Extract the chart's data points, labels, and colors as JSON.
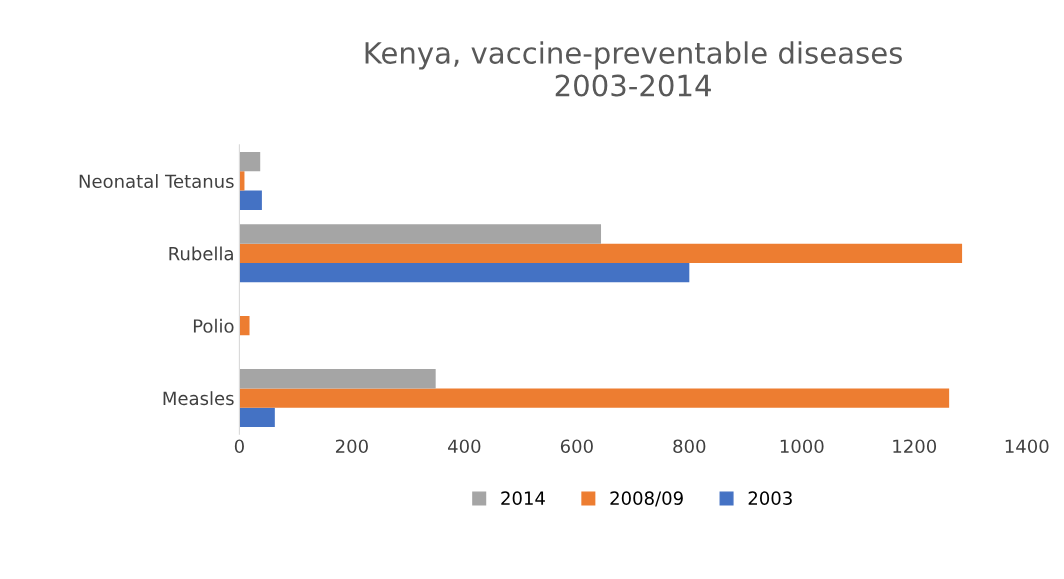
{
  "chart_data": {
    "type": "bar",
    "orientation": "horizontal",
    "title": "Kenya, vaccine-preventable diseases\n2003-2014",
    "categories": [
      "Neonatal Tetanus",
      "Rubella",
      "Polio",
      "Measles"
    ],
    "series": [
      {
        "name": "2003",
        "color": "#4472c4",
        "values": [
          40,
          800,
          0,
          63
        ]
      },
      {
        "name": "2008/09",
        "color": "#ed7d31",
        "values": [
          9,
          1285,
          18,
          1262
        ]
      },
      {
        "name": "2014",
        "color": "#a5a5a5",
        "values": [
          37,
          643,
          0,
          349
        ]
      }
    ],
    "xlim": [
      0,
      1400
    ],
    "xticks": [
      0,
      200,
      400,
      600,
      800,
      1000,
      1200,
      1400
    ],
    "grid": false,
    "legend": "bottom"
  }
}
